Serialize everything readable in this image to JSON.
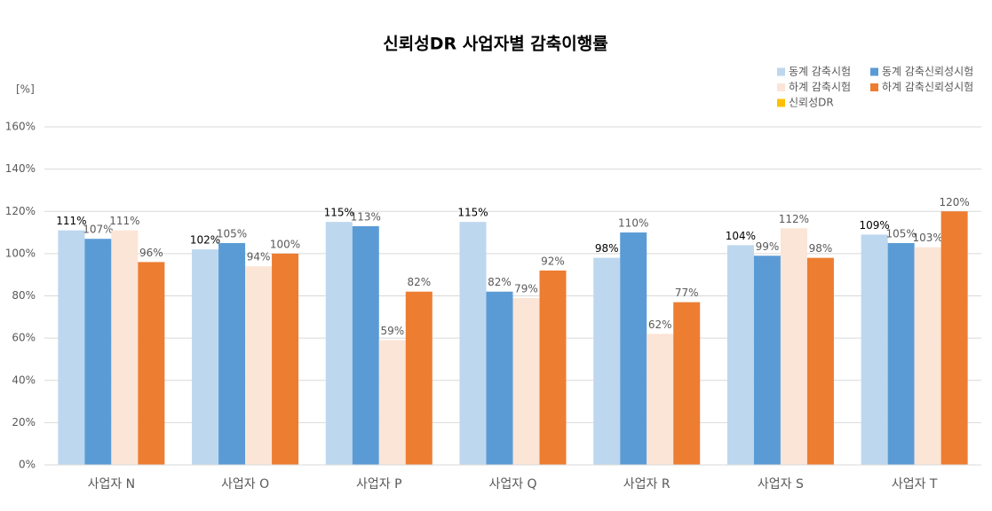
{
  "chart_data": {
    "type": "bar",
    "title": "신뢰성DR 사업자별 감축이행률",
    "ylabel": "[%]",
    "categories": [
      "사업자 N",
      "사업자 O",
      "사업자 P",
      "사업자 Q",
      "사업자 R",
      "사업자 S",
      "사업자 T"
    ],
    "series": [
      {
        "name": "동계 감축시험",
        "color": "#bdd7ee",
        "values": [
          111,
          102,
          115,
          115,
          98,
          104,
          109
        ],
        "value_labels": [
          "111%",
          "102%",
          "115%",
          "115%",
          "98%",
          "104%",
          "109%"
        ]
      },
      {
        "name": "동계 감축신뢰성시험",
        "color": "#5b9bd5",
        "values": [
          107,
          105,
          113,
          82,
          110,
          99,
          105
        ],
        "value_labels": [
          "107%",
          "105%",
          "113%",
          "82%",
          "110%",
          "99%",
          "105%"
        ]
      },
      {
        "name": "하계 감축시험",
        "color": "#fbe5d6",
        "values": [
          111,
          94,
          59,
          79,
          62,
          112,
          103
        ],
        "value_labels": [
          "111%",
          "94%",
          "59%",
          "79%",
          "62%",
          "112%",
          "103%"
        ]
      },
      {
        "name": "하계 감축신뢰성시험",
        "color": "#ed7d31",
        "values": [
          96,
          100,
          82,
          92,
          77,
          98,
          120
        ],
        "value_labels": [
          "96%",
          "100%",
          "82%",
          "92%",
          "77%",
          "98%",
          "120%"
        ]
      },
      {
        "name": "신뢰성DR",
        "color": "#ffc000",
        "values": [
          null,
          null,
          null,
          null,
          null,
          null,
          null
        ]
      }
    ],
    "ylim": [
      0,
      160
    ],
    "yticks": [
      {
        "value": 0,
        "label": "0%"
      },
      {
        "value": 20,
        "label": "20%"
      },
      {
        "value": 40,
        "label": "40%"
      },
      {
        "value": 60,
        "label": "60%"
      },
      {
        "value": 80,
        "label": "80%"
      },
      {
        "value": 100,
        "label": "100%"
      },
      {
        "value": 120,
        "label": "120%"
      },
      {
        "value": 140,
        "label": "140%"
      },
      {
        "value": 160,
        "label": "160%"
      }
    ],
    "grid": true,
    "legend": "top-right"
  }
}
